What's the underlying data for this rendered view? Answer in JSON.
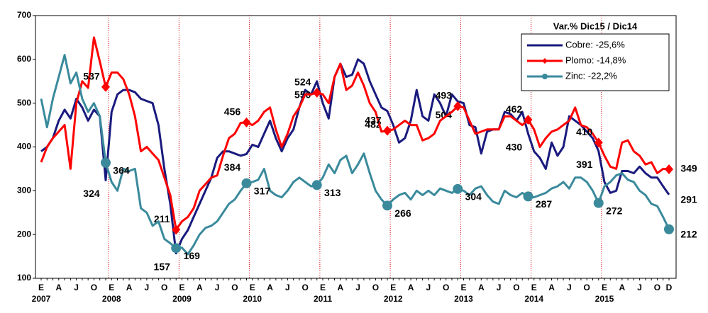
{
  "chart_data": {
    "type": "line",
    "categories": [
      "E",
      null,
      null,
      "A",
      null,
      null,
      "J",
      null,
      null,
      "O",
      null,
      null,
      "E",
      null,
      null,
      "A",
      null,
      null,
      "J",
      null,
      null,
      "O",
      null,
      null,
      "E",
      null,
      null,
      "A",
      null,
      null,
      "J",
      null,
      null,
      "O",
      null,
      null,
      "E",
      null,
      null,
      "A",
      null,
      null,
      "J",
      null,
      null,
      "O",
      null,
      null,
      "E",
      null,
      null,
      "A",
      null,
      null,
      "J",
      null,
      null,
      "O",
      null,
      null,
      "E",
      null,
      null,
      "A",
      null,
      null,
      "J",
      null,
      null,
      "O",
      null,
      null,
      "E",
      null,
      null,
      "A",
      null,
      null,
      "J",
      null,
      null,
      "O",
      null,
      null,
      "E",
      null,
      null,
      "A",
      null,
      null,
      "J",
      null,
      null,
      "O",
      null,
      null,
      "E",
      null,
      null,
      "A",
      null,
      null,
      "J",
      null,
      null,
      "O",
      null,
      "D"
    ],
    "x_group_labels": [
      "2007",
      "2008",
      "2009",
      "2010",
      "2011",
      "2012",
      "2013",
      "2014",
      "2015"
    ],
    "ylim": [
      100,
      700
    ],
    "yticks": [
      100,
      200,
      300,
      400,
      500,
      600,
      700
    ],
    "year_grid": true,
    "grid_color": "#d00000",
    "legend_title": "Var.% Dic15 / Dic14",
    "legend": "upper right",
    "series": [
      {
        "name": "Cobre: -25,6%",
        "color": "#1a1a7e",
        "marker": null,
        "values": [
          390,
          400,
          420,
          460,
          485,
          465,
          510,
          490,
          460,
          485,
          470,
          324,
          480,
          520,
          530,
          530,
          525,
          510,
          505,
          500,
          450,
          350,
          270,
          157,
          190,
          210,
          240,
          270,
          300,
          330,
          375,
          390,
          390,
          385,
          380,
          384,
          405,
          400,
          430,
          460,
          420,
          390,
          420,
          440,
          490,
          530,
          520,
          550,
          500,
          465,
          560,
          590,
          560,
          565,
          600,
          590,
          550,
          520,
          490,
          482,
          450,
          410,
          420,
          460,
          530,
          470,
          460,
          520,
          500,
          470,
          520,
          504,
          500,
          450,
          445,
          385,
          435,
          440,
          440,
          480,
          475,
          460,
          480,
          430,
          390,
          375,
          350,
          410,
          380,
          400,
          470,
          460,
          450,
          435,
          420,
          391,
          320,
          295,
          300,
          345,
          345,
          340,
          355,
          340,
          330,
          330,
          310,
          291
        ],
        "value_labels": [
          null,
          null,
          null,
          null,
          null,
          null,
          null,
          null,
          null,
          null,
          null,
          "324",
          null,
          null,
          null,
          null,
          null,
          null,
          null,
          null,
          null,
          null,
          null,
          "157",
          null,
          null,
          null,
          null,
          null,
          null,
          null,
          null,
          null,
          null,
          null,
          "384",
          null,
          null,
          null,
          null,
          null,
          null,
          null,
          null,
          null,
          null,
          null,
          "550",
          null,
          null,
          null,
          null,
          null,
          null,
          null,
          null,
          null,
          null,
          null,
          "482",
          null,
          null,
          null,
          null,
          null,
          null,
          null,
          null,
          null,
          null,
          null,
          "504",
          null,
          null,
          null,
          null,
          null,
          null,
          null,
          null,
          null,
          null,
          null,
          "430",
          null,
          null,
          null,
          null,
          null,
          null,
          null,
          null,
          null,
          null,
          null,
          "391",
          null,
          null,
          null,
          null,
          null,
          null,
          null,
          null,
          null,
          null,
          null,
          "291"
        ]
      },
      {
        "name": "Plomo: -14,8%",
        "color": "#ff0000",
        "marker": "diamond",
        "values": [
          365,
          400,
          420,
          435,
          450,
          350,
          500,
          550,
          535,
          650,
          595,
          537,
          570,
          570,
          555,
          520,
          470,
          390,
          400,
          385,
          370,
          330,
          290,
          211,
          230,
          240,
          260,
          300,
          315,
          330,
          335,
          380,
          420,
          430,
          455,
          456,
          450,
          460,
          480,
          490,
          440,
          400,
          430,
          470,
          490,
          520,
          520,
          524,
          520,
          500,
          560,
          590,
          530,
          540,
          570,
          540,
          500,
          480,
          435,
          437,
          440,
          450,
          460,
          450,
          450,
          415,
          420,
          430,
          460,
          470,
          480,
          493,
          490,
          460,
          430,
          435,
          440,
          440,
          440,
          470,
          470,
          460,
          450,
          462,
          440,
          400,
          420,
          435,
          440,
          450,
          460,
          490,
          450,
          445,
          430,
          410,
          380,
          355,
          350,
          410,
          415,
          390,
          380,
          360,
          365,
          340,
          350,
          349
        ],
        "value_labels": [
          null,
          null,
          null,
          null,
          null,
          null,
          null,
          null,
          null,
          null,
          null,
          "537",
          null,
          null,
          null,
          null,
          null,
          null,
          null,
          null,
          null,
          null,
          null,
          "211",
          null,
          null,
          null,
          null,
          null,
          null,
          null,
          null,
          null,
          null,
          null,
          "456",
          null,
          null,
          null,
          null,
          null,
          null,
          null,
          null,
          null,
          null,
          null,
          "524",
          null,
          null,
          null,
          null,
          null,
          null,
          null,
          null,
          null,
          null,
          null,
          "437",
          null,
          null,
          null,
          null,
          null,
          null,
          null,
          null,
          null,
          null,
          null,
          "493",
          null,
          null,
          null,
          null,
          null,
          null,
          null,
          null,
          null,
          null,
          null,
          "462",
          null,
          null,
          null,
          null,
          null,
          null,
          null,
          null,
          null,
          null,
          null,
          "410",
          null,
          null,
          null,
          null,
          null,
          null,
          null,
          null,
          null,
          null,
          null,
          "349"
        ]
      },
      {
        "name": "Zinc: -22,2%",
        "color": "#3a8a9c",
        "marker": "circle",
        "values": [
          510,
          445,
          510,
          560,
          610,
          545,
          570,
          510,
          480,
          500,
          470,
          364,
          320,
          300,
          350,
          345,
          350,
          260,
          250,
          220,
          230,
          190,
          180,
          169,
          170,
          155,
          175,
          200,
          215,
          220,
          230,
          250,
          270,
          280,
          300,
          317,
          320,
          325,
          350,
          300,
          290,
          285,
          300,
          320,
          330,
          320,
          310,
          313,
          330,
          360,
          340,
          370,
          380,
          340,
          360,
          385,
          340,
          300,
          280,
          266,
          280,
          290,
          295,
          280,
          300,
          290,
          300,
          290,
          305,
          300,
          295,
          304,
          300,
          290,
          305,
          310,
          290,
          275,
          270,
          300,
          290,
          285,
          295,
          287,
          285,
          290,
          295,
          305,
          310,
          320,
          305,
          330,
          330,
          320,
          300,
          272,
          310,
          320,
          335,
          340,
          325,
          320,
          300,
          290,
          270,
          265,
          240,
          212
        ],
        "value_labels": [
          null,
          null,
          null,
          null,
          null,
          null,
          null,
          null,
          null,
          null,
          null,
          "364",
          null,
          null,
          null,
          null,
          null,
          null,
          null,
          null,
          null,
          null,
          null,
          "169",
          null,
          null,
          null,
          null,
          null,
          null,
          null,
          null,
          null,
          null,
          null,
          "317",
          null,
          null,
          null,
          null,
          null,
          null,
          null,
          null,
          null,
          null,
          null,
          "313",
          null,
          null,
          null,
          null,
          null,
          null,
          null,
          null,
          null,
          null,
          null,
          "266",
          null,
          null,
          null,
          null,
          null,
          null,
          null,
          null,
          null,
          null,
          null,
          "304",
          null,
          null,
          null,
          null,
          null,
          null,
          null,
          null,
          null,
          null,
          null,
          "287",
          null,
          null,
          null,
          null,
          null,
          null,
          null,
          null,
          null,
          null,
          null,
          "272",
          null,
          null,
          null,
          null,
          null,
          null,
          null,
          null,
          null,
          null,
          null,
          "212"
        ]
      }
    ]
  }
}
